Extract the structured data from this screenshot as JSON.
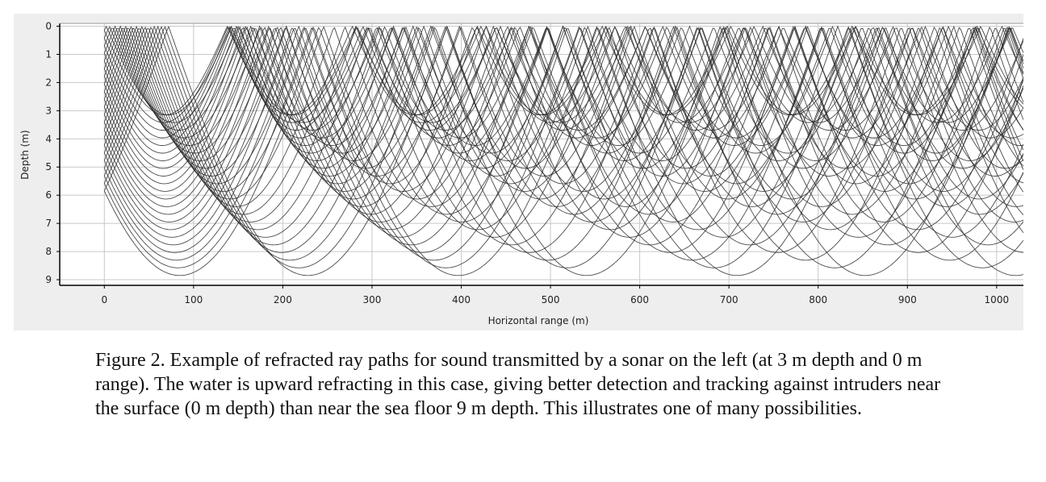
{
  "caption": "Figure 2. Example of refracted ray paths for sound transmitted by a sonar on the left (at 3 m depth and 0 m range). The water is upward refracting in this case, giving better detection and tracking against intruders near the surface (0 m depth) than near the sea floor 9 m depth. This illustrates one of many possibilities.",
  "chart_data": {
    "type": "line",
    "title": "",
    "xlabel": "Horizontal range (m)",
    "ylabel": "Depth (m)",
    "xlim": [
      -50,
      1030
    ],
    "ylim": [
      9.2,
      -0.1
    ],
    "x_ticks": [
      0,
      100,
      200,
      300,
      400,
      500,
      600,
      700,
      800,
      900,
      1000
    ],
    "y_ticks": [
      0,
      1,
      2,
      3,
      4,
      5,
      6,
      7,
      8,
      9
    ],
    "y_inverted": true,
    "grid": true,
    "source": {
      "range_m": 0,
      "depth_m": 3
    },
    "surface_depth_m": 0,
    "floor_depth_m": 9,
    "ray_color": "#2a2a2a",
    "grid_color": "#c8c8c8",
    "frame_color": "#000000"
  }
}
